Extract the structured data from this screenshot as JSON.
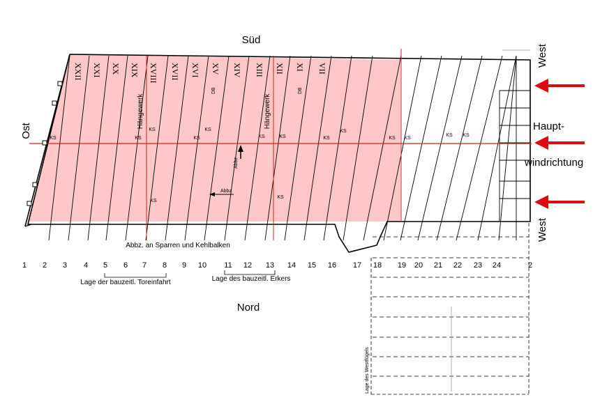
{
  "orientation": {
    "south": "Süd",
    "north": "Nord",
    "east": "Ost",
    "west_top": "West",
    "west_bottom": "West"
  },
  "wind": {
    "line1": "Haupt-",
    "line2": "windrichtung",
    "arrow_color": "#e30613",
    "arrow_count": 3
  },
  "colors": {
    "shaded_area": "#ffc7c7",
    "red_line": "#d2231e",
    "line": "#000000"
  },
  "axis_numbers": [
    "1",
    "2",
    "3",
    "4",
    "5",
    "6",
    "7",
    "8",
    "9",
    "10",
    "11",
    "12",
    "13",
    "14",
    "15",
    "16",
    "17",
    "18",
    "19",
    "20",
    "21",
    "22",
    "23",
    "24",
    "2"
  ],
  "roman_top": [
    "XXII",
    "XXI",
    "XX",
    "XIX",
    "XVIII",
    "XVII",
    "XVI",
    "XV",
    "XIV",
    "XIII",
    "XII",
    "XI",
    "VII"
  ],
  "annotations": {
    "haengewerk_1": "Hängewerk",
    "haengewerk_2": "Hängewerk",
    "ks": "KS",
    "db": "DB",
    "abbz": "Abbz",
    "abbz_rafters": "Abbz. an Sparren und Kehlbalken",
    "gate": "Lage der bauzeitl. Toreinfahrt",
    "oriel": "Lage des bauzeitl. Erkers",
    "west_wing": "Lage des Westflügels"
  }
}
